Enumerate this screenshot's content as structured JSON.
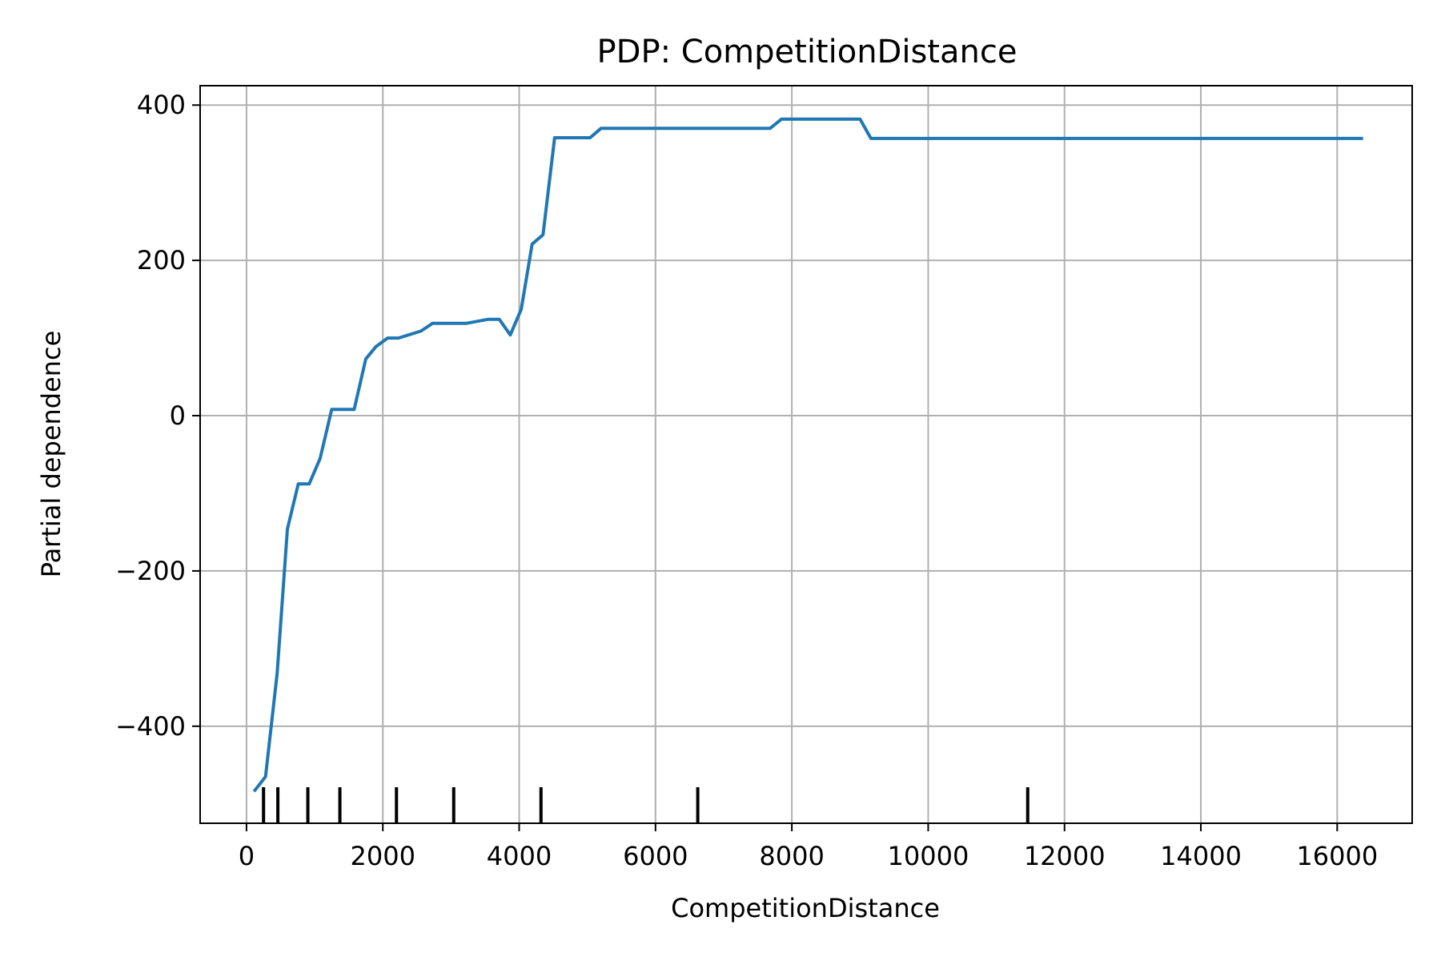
{
  "chart_data": {
    "type": "line",
    "title": "PDP: CompetitionDistance",
    "xlabel": "CompetitionDistance",
    "ylabel": "Partial dependence",
    "xlim": [
      -680,
      17100
    ],
    "ylim": [
      -525,
      425
    ],
    "xticks": [
      0,
      2000,
      4000,
      6000,
      8000,
      10000,
      12000,
      14000,
      16000
    ],
    "xtick_labels": [
      "0",
      "2000",
      "4000",
      "6000",
      "8000",
      "10000",
      "12000",
      "14000",
      "16000"
    ],
    "yticks": [
      400,
      200,
      0,
      -200,
      -400
    ],
    "ytick_labels": [
      "400",
      "200",
      "0",
      "−200",
      "−400"
    ],
    "grid": true,
    "line_color": "#1f77b4",
    "rug_color": "#000000",
    "series": [
      {
        "x": [
          110,
          280,
          450,
          600,
          760,
          920,
          1080,
          1250,
          1580,
          1750,
          1900,
          2070,
          2230,
          2560,
          2730,
          3060,
          3230,
          3540,
          3710,
          3870,
          4030,
          4190,
          4350,
          4520,
          5040,
          5200,
          7680,
          7850,
          9000,
          9160,
          16380
        ],
        "y": [
          -484,
          -465,
          -332,
          -146,
          -88,
          -88,
          -55,
          8,
          8,
          73,
          89,
          100,
          100,
          109,
          119,
          119,
          119,
          124,
          124,
          104,
          137,
          221,
          233,
          358,
          358,
          370,
          370,
          382,
          382,
          357,
          357
        ]
      }
    ],
    "rug_x": [
      250,
      460,
      900,
      1370,
      2200,
      3040,
      4320,
      6620,
      11460
    ]
  }
}
